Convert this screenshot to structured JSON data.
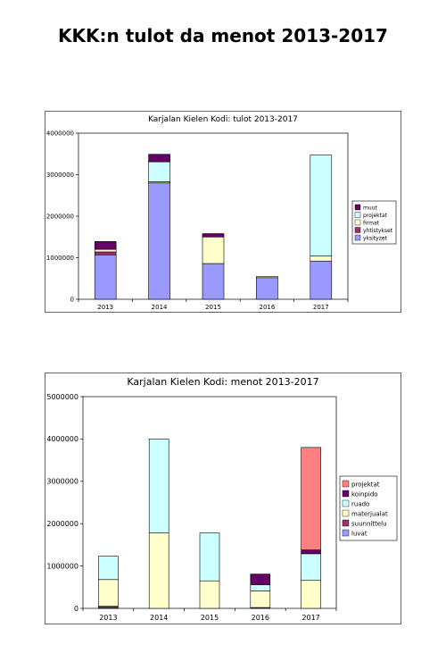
{
  "page": {
    "title": "KKK:n tulot da menot 2013-2017"
  },
  "chart_data": [
    {
      "type": "bar",
      "stacked": true,
      "title": "Karjalan Kielen Kodi: tulot 2013-2017",
      "xlabel": "",
      "ylabel": "",
      "categories": [
        "2013",
        "2014",
        "2015",
        "2016",
        "2017"
      ],
      "ylim": [
        0,
        4000000
      ],
      "yticks": [
        0,
        1000000,
        2000000,
        3000000,
        4000000
      ],
      "ytick_labels": [
        "0",
        "1000000",
        "2000000",
        "3000000",
        "4000000"
      ],
      "grid": false,
      "legend_position": "right",
      "series": [
        {
          "name": "yksityzet",
          "color": "#9999ff",
          "values": [
            1070000,
            2800000,
            860000,
            520000,
            920000
          ]
        },
        {
          "name": "yhtistykset",
          "color": "#993366",
          "values": [
            70000,
            0,
            0,
            0,
            0
          ]
        },
        {
          "name": "firmat",
          "color": "#ffffcc",
          "values": [
            60000,
            30000,
            640000,
            30000,
            120000
          ]
        },
        {
          "name": "projektat",
          "color": "#ccffff",
          "values": [
            0,
            480000,
            0,
            0,
            2430000
          ]
        },
        {
          "name": "muut",
          "color": "#660066",
          "values": [
            190000,
            180000,
            80000,
            0,
            0
          ]
        }
      ]
    },
    {
      "type": "bar",
      "stacked": true,
      "title": "Karjalan Kielen Kodi: menot 2013-2017",
      "xlabel": "",
      "ylabel": "",
      "categories": [
        "2013",
        "2014",
        "2015",
        "2016",
        "2017"
      ],
      "ylim": [
        0,
        5000000
      ],
      "yticks": [
        0,
        1000000,
        2000000,
        3000000,
        4000000,
        5000000
      ],
      "ytick_labels": [
        "0",
        "1000000",
        "2000000",
        "3000000",
        "4000000",
        "5000000"
      ],
      "grid": false,
      "legend_position": "right",
      "series": [
        {
          "name": "luvat",
          "color": "#9999ff",
          "values": [
            20000,
            0,
            0,
            0,
            0
          ]
        },
        {
          "name": "suunnittelu",
          "color": "#993366",
          "values": [
            30000,
            0,
            0,
            20000,
            0
          ]
        },
        {
          "name": "materjualat",
          "color": "#ffffcc",
          "values": [
            630000,
            1780000,
            650000,
            390000,
            660000
          ]
        },
        {
          "name": "ruado",
          "color": "#ccffff",
          "values": [
            550000,
            2220000,
            1130000,
            150000,
            630000
          ]
        },
        {
          "name": "koinpido",
          "color": "#660066",
          "values": [
            0,
            0,
            0,
            250000,
            90000
          ]
        },
        {
          "name": "projektat",
          "color": "#ff8080",
          "values": [
            0,
            0,
            0,
            0,
            2420000
          ]
        }
      ]
    }
  ]
}
